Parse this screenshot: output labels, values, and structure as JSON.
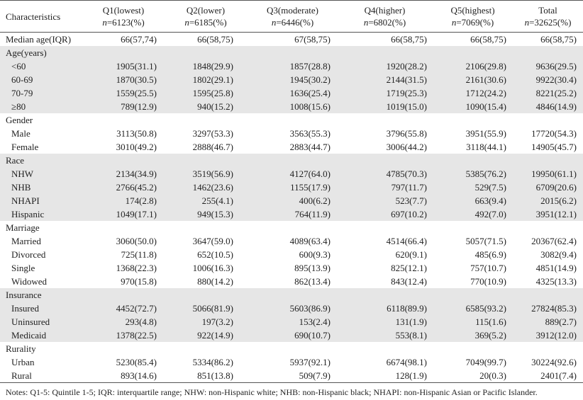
{
  "header": {
    "label": "Characteristics",
    "columns": [
      {
        "name": "Q1(lowest)",
        "n": "n=6123(%)"
      },
      {
        "name": "Q2(lower)",
        "n": "n=6185(%)"
      },
      {
        "name": "Q3(moderate)",
        "n": "n=6446(%)"
      },
      {
        "name": "Q4(higher)",
        "n": "n=6802(%)"
      },
      {
        "name": "Q5(highest)",
        "n": "n=7069(%)"
      },
      {
        "name": "Total",
        "n": "n=32625(%)"
      }
    ]
  },
  "median_row": {
    "label": "Median age(IQR)",
    "values": [
      "66(57,74)",
      "66(58,75)",
      "67(58,75)",
      "66(58,75)",
      "66(58,75)",
      "66(58,75)"
    ]
  },
  "groups": [
    {
      "title": "Age(years)",
      "rows": [
        {
          "label": "<60",
          "values": [
            "1905(31.1)",
            "1848(29.9)",
            "1857(28.8)",
            "1920(28.2)",
            "2106(29.8)",
            "9636(29.5)"
          ]
        },
        {
          "label": "60-69",
          "values": [
            "1870(30.5)",
            "1802(29.1)",
            "1945(30.2)",
            "2144(31.5)",
            "2161(30.6)",
            "9922(30.4)"
          ]
        },
        {
          "label": "70-79",
          "values": [
            "1559(25.5)",
            "1595(25.8)",
            "1636(25.4)",
            "1719(25.3)",
            "1712(24.2)",
            "8221(25.2)"
          ]
        },
        {
          "label": "≥80",
          "values": [
            "789(12.9)",
            "940(15.2)",
            "1008(15.6)",
            "1019(15.0)",
            "1090(15.4)",
            "4846(14.9)"
          ]
        }
      ]
    },
    {
      "title": "Gender",
      "rows": [
        {
          "label": "Male",
          "values": [
            "3113(50.8)",
            "3297(53.3)",
            "3563(55.3)",
            "3796(55.8)",
            "3951(55.9)",
            "17720(54.3)"
          ]
        },
        {
          "label": "Female",
          "values": [
            "3010(49.2)",
            "2888(46.7)",
            "2883(44.7)",
            "3006(44.2)",
            "3118(44.1)",
            "14905(45.7)"
          ]
        }
      ]
    },
    {
      "title": "Race",
      "rows": [
        {
          "label": "NHW",
          "values": [
            "2134(34.9)",
            "3519(56.9)",
            "4127(64.0)",
            "4785(70.3)",
            "5385(76.2)",
            "19950(61.1)"
          ]
        },
        {
          "label": "NHB",
          "values": [
            "2766(45.2)",
            "1462(23.6)",
            "1155(17.9)",
            "797(11.7)",
            "529(7.5)",
            "6709(20.6)"
          ]
        },
        {
          "label": "NHAPI",
          "values": [
            "174(2.8)",
            "255(4.1)",
            "400(6.2)",
            "523(7.7)",
            "663(9.4)",
            "2015(6.2)"
          ]
        },
        {
          "label": "Hispanic",
          "values": [
            "1049(17.1)",
            "949(15.3)",
            "764(11.9)",
            "697(10.2)",
            "492(7.0)",
            "3951(12.1)"
          ]
        }
      ]
    },
    {
      "title": "Marriage",
      "rows": [
        {
          "label": "Married",
          "values": [
            "3060(50.0)",
            "3647(59.0)",
            "4089(63.4)",
            "4514(66.4)",
            "5057(71.5)",
            "20367(62.4)"
          ]
        },
        {
          "label": "Divorced",
          "values": [
            "725(11.8)",
            "652(10.5)",
            "600(9.3)",
            "620(9.1)",
            "485(6.9)",
            "3082(9.4)"
          ]
        },
        {
          "label": "Single",
          "values": [
            "1368(22.3)",
            "1006(16.3)",
            "895(13.9)",
            "825(12.1)",
            "757(10.7)",
            "4851(14.9)"
          ]
        },
        {
          "label": "Widowed",
          "values": [
            "970(15.8)",
            "880(14.2)",
            "862(13.4)",
            "843(12.4)",
            "770(10.9)",
            "4325(13.3)"
          ]
        }
      ]
    },
    {
      "title": "Insurance",
      "rows": [
        {
          "label": "Insured",
          "values": [
            "4452(72.7)",
            "5066(81.9)",
            "5603(86.9)",
            "6118(89.9)",
            "6585(93.2)",
            "27824(85.3)"
          ]
        },
        {
          "label": "Uninsured",
          "values": [
            "293(4.8)",
            "197(3.2)",
            "153(2.4)",
            "131(1.9)",
            "115(1.6)",
            "889(2.7)"
          ]
        },
        {
          "label": "Medicaid",
          "values": [
            "1378(22.5)",
            "922(14.9)",
            "690(10.7)",
            "553(8.1)",
            "369(5.2)",
            "3912(12.0)"
          ]
        }
      ]
    },
    {
      "title": "Rurality",
      "rows": [
        {
          "label": "Urban",
          "values": [
            "5230(85.4)",
            "5334(86.2)",
            "5937(92.1)",
            "6674(98.1)",
            "7049(99.7)",
            "30224(92.6)"
          ]
        },
        {
          "label": "Rural",
          "values": [
            "893(14.6)",
            "851(13.8)",
            "509(7.9)",
            "128(1.9)",
            "20(0.3)",
            "2401(7.4)"
          ]
        }
      ]
    }
  ],
  "notes": "Notes: Q1-5: Quintile 1-5; IQR: interquartile range; NHW: non-Hispanic white; NHB: non-Hispanic black; NHAPI: non-Hispanic Asian or Pacific Islander."
}
